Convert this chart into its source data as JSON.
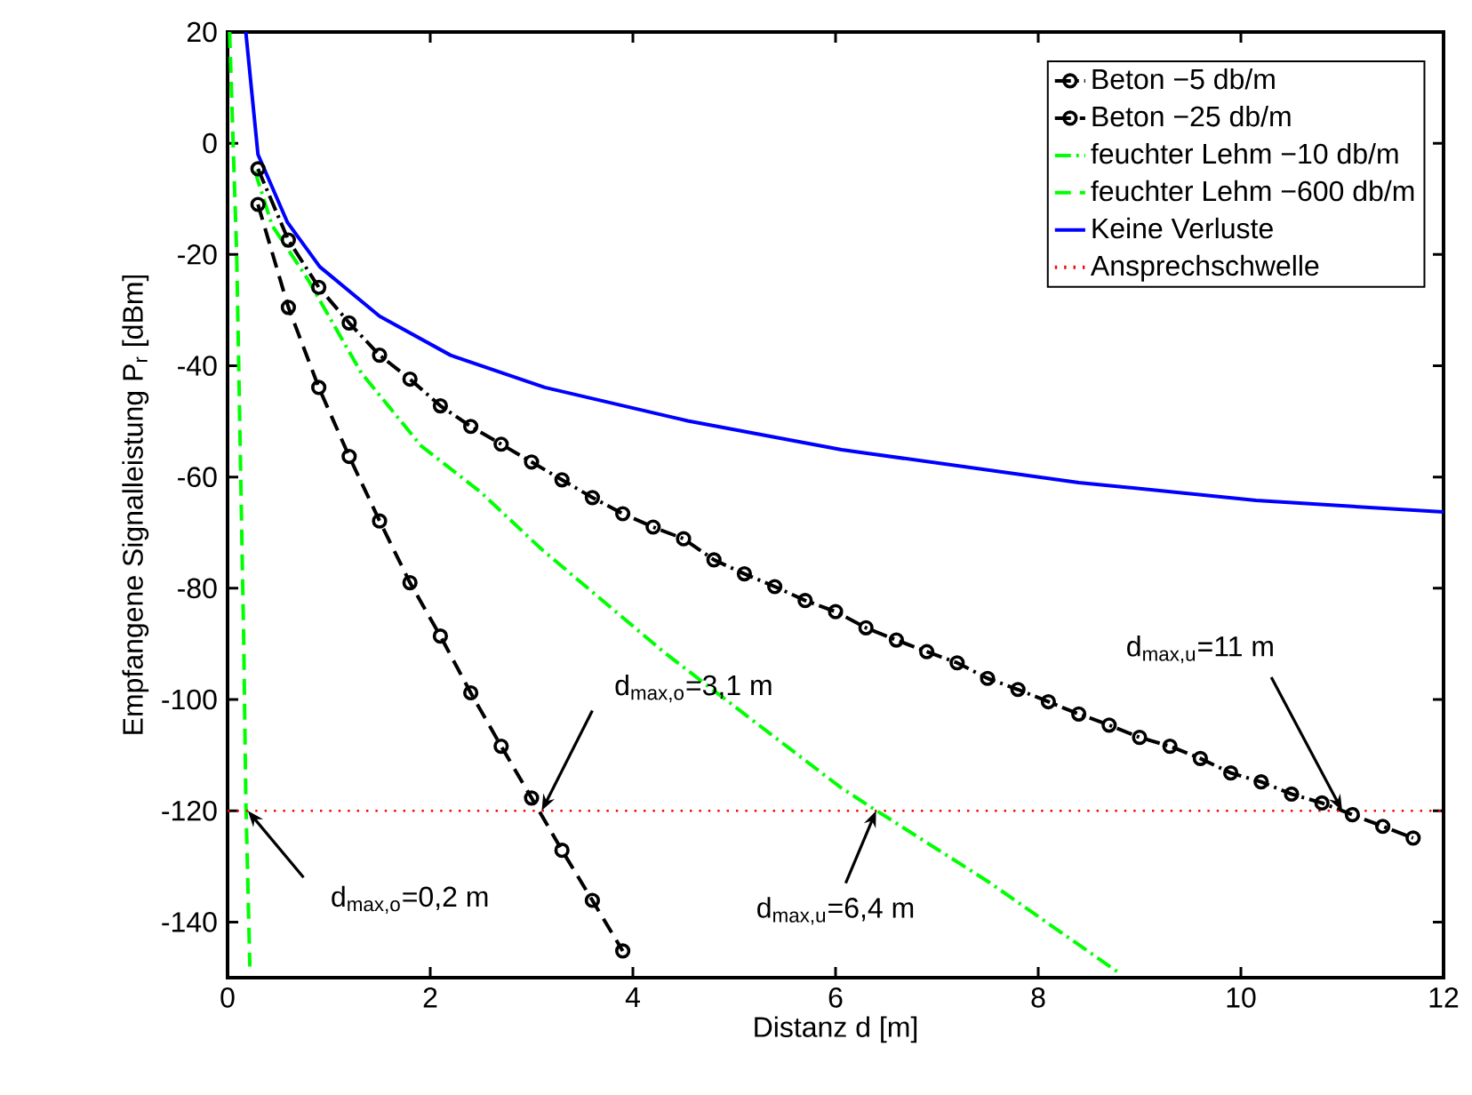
{
  "chart_data": {
    "type": "line",
    "xlabel": "Distanz d [m]",
    "ylabel": "Empfangene Signalleistung P$_{r}$ [dBm]",
    "xlim": [
      0,
      12
    ],
    "ylim": [
      -150,
      20
    ],
    "xticks": [
      0,
      2,
      4,
      6,
      8,
      10,
      12
    ],
    "yticks": [
      -140,
      -120,
      -100,
      -80,
      -60,
      -40,
      -20,
      0,
      20
    ],
    "grid": false,
    "legend": "top right",
    "series": [
      {
        "name": "Beton −5 db/m",
        "color": "#000000",
        "line_style": "dashdot",
        "marker": "circle",
        "x": [
          0.3,
          0.6,
          0.9,
          1.2,
          1.5,
          1.8,
          2.1,
          2.4,
          2.7,
          3.0,
          3.3,
          3.6,
          3.9,
          4.2,
          4.5,
          4.8,
          5.1,
          5.4,
          5.7,
          6.0,
          6.3,
          6.6,
          6.9,
          7.2,
          7.5,
          7.8,
          8.1,
          8.4,
          8.7,
          9.0,
          9.3,
          9.6,
          9.9,
          10.2,
          10.5,
          10.8,
          11.1,
          11.4,
          11.7
        ],
        "values": [
          -4.6,
          -17.4,
          -25.9,
          -32.3,
          -38.1,
          -42.4,
          -47.2,
          -50.9,
          -54.1,
          -57.3,
          -60.5,
          -63.7,
          -66.6,
          -69.0,
          -71.1,
          -74.9,
          -77.4,
          -79.7,
          -82.2,
          -84.2,
          -87.1,
          -89.3,
          -91.4,
          -93.4,
          -96.2,
          -98.2,
          -100.4,
          -102.6,
          -104.6,
          -106.8,
          -108.4,
          -110.6,
          -113.2,
          -114.8,
          -117.0,
          -118.6,
          -120.7,
          -122.8,
          -124.9
        ]
      },
      {
        "name": "Beton −25 db/m",
        "color": "#000000",
        "line_style": "dashed",
        "marker": "circle",
        "x": [
          0.3,
          0.6,
          0.9,
          1.2,
          1.5,
          1.8,
          2.1,
          2.4,
          2.7,
          3.0,
          3.3,
          3.6,
          3.9
        ],
        "values": [
          -11.0,
          -29.5,
          -43.9,
          -56.3,
          -67.9,
          -79.0,
          -88.6,
          -98.8,
          -108.4,
          -117.7,
          -127.1,
          -136.1,
          -145.2
        ]
      },
      {
        "name": "feuchter Lehm −10 db/m",
        "color": "#00ff00",
        "line_style": "dashdot",
        "marker": "none",
        "x": [
          0.27,
          0.44,
          0.79,
          1.32,
          1.91,
          2.49,
          3.1,
          4.3,
          5.2,
          6.05,
          6.32,
          7.52,
          8.81
        ],
        "values": [
          -5,
          -14.8,
          -24.4,
          -41.3,
          -54.4,
          -62.6,
          -73,
          -91.4,
          -104,
          -115.8,
          -119,
          -132.9,
          -149.3
        ]
      },
      {
        "name": "feuchter Lehm −600 db/m",
        "color": "#00ff00",
        "line_style": "dashed",
        "marker": "none",
        "x": [
          0.02,
          0.09,
          0.13,
          0.16,
          0.18,
          0.22
        ],
        "values": [
          20,
          -20,
          -60,
          -90,
          -118,
          -148
        ]
      },
      {
        "name": "Keine Verluste",
        "color": "#0000ff",
        "line_style": "solid",
        "marker": "none",
        "x": [
          0.18,
          0.3,
          0.59,
          0.91,
          1.5,
          2.2,
          3.13,
          4.54,
          6.06,
          8.4,
          10.15,
          12.0
        ],
        "values": [
          20,
          -2,
          -14.2,
          -22.2,
          -31.1,
          -38.1,
          -43.9,
          -49.9,
          -55.1,
          -61.0,
          -64.2,
          -66.3
        ]
      }
    ],
    "ref_lines": [
      {
        "axis": "y",
        "value": -120,
        "label": "Ansprechschwelle",
        "color": "#ff0000",
        "line_style": "dotted"
      }
    ],
    "annotations": [
      {
        "text": "d$_{max,o}$=3,1 m",
        "x": 3.1,
        "y": -120
      },
      {
        "text": "d$_{max,o}$=0,2 m",
        "x": 0.2,
        "y": -120
      },
      {
        "text": "d$_{max,u}$=6,4 m",
        "x": 6.4,
        "y": -120
      },
      {
        "text": "d$_{max,u}$=11 m",
        "x": 11,
        "y": -120
      }
    ]
  }
}
